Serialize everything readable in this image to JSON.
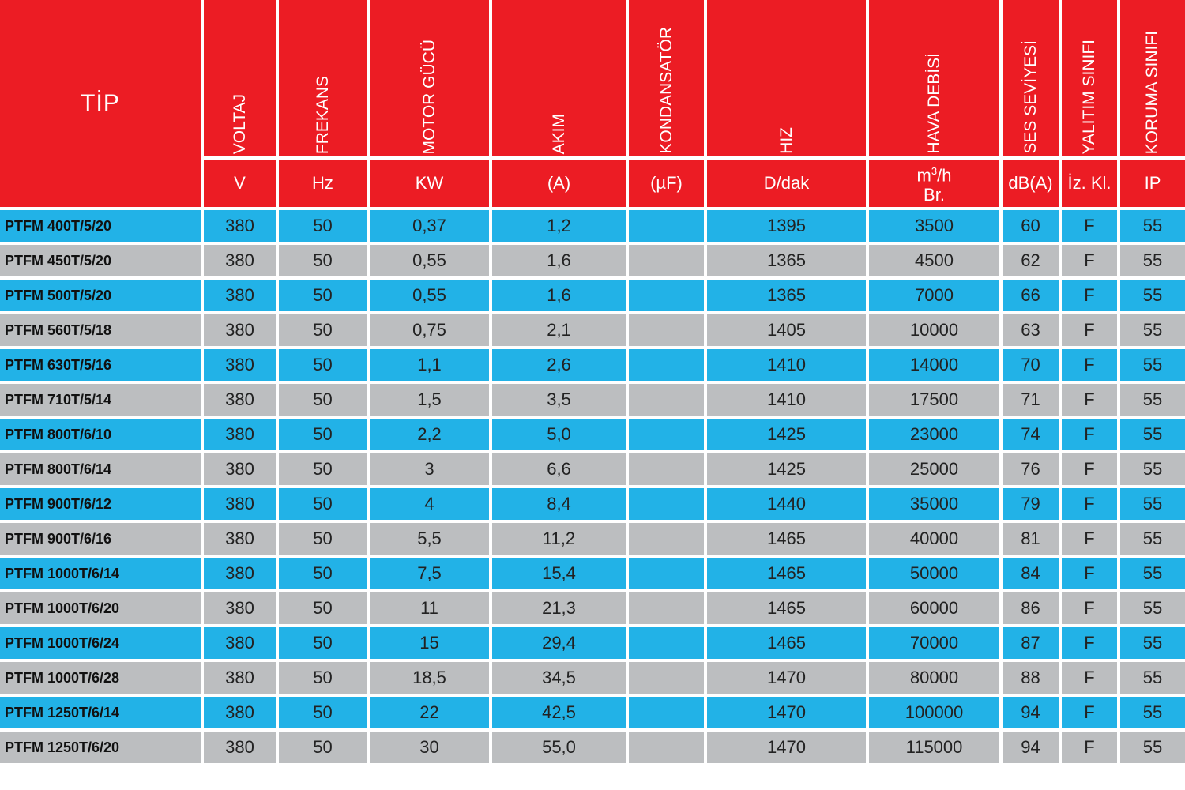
{
  "colors": {
    "header_bg": "#ec1c24",
    "row_blue": "#22b2e7",
    "row_grey": "#bcbec0"
  },
  "headers": [
    {
      "label": "TİP",
      "unit": ""
    },
    {
      "label": "VOLTAJ",
      "unit": "V"
    },
    {
      "label": "FREKANS",
      "unit": "Hz"
    },
    {
      "label": "MOTOR GÜCÜ",
      "unit": "KW"
    },
    {
      "label": "AKIM",
      "unit": "(A)"
    },
    {
      "label": "KONDANSATÖR",
      "unit": "(µF)"
    },
    {
      "label": "HIZ",
      "unit": "D/dak"
    },
    {
      "label": "HAVA DEBİSİ",
      "unit_line1": "m",
      "unit_sup": "3",
      "unit_line1b": "/h",
      "unit_line2": "Br."
    },
    {
      "label": "SES SEVİYESİ",
      "unit": "dB(A)"
    },
    {
      "label": "YALITIM SINIFI",
      "unit": "İz. Kl."
    },
    {
      "label": "KORUMA SINIFI",
      "unit": "IP"
    }
  ],
  "rows": [
    [
      "PTFM 400T/5/20",
      "380",
      "50",
      "0,37",
      "1,2",
      "",
      "1395",
      "3500",
      "60",
      "F",
      "55"
    ],
    [
      "PTFM 450T/5/20",
      "380",
      "50",
      "0,55",
      "1,6",
      "",
      "1365",
      "4500",
      "62",
      "F",
      "55"
    ],
    [
      "PTFM 500T/5/20",
      "380",
      "50",
      "0,55",
      "1,6",
      "",
      "1365",
      "7000",
      "66",
      "F",
      "55"
    ],
    [
      "PTFM 560T/5/18",
      "380",
      "50",
      "0,75",
      "2,1",
      "",
      "1405",
      "10000",
      "63",
      "F",
      "55"
    ],
    [
      "PTFM 630T/5/16",
      "380",
      "50",
      "1,1",
      "2,6",
      "",
      "1410",
      "14000",
      "70",
      "F",
      "55"
    ],
    [
      "PTFM 710T/5/14",
      "380",
      "50",
      "1,5",
      "3,5",
      "",
      "1410",
      "17500",
      "71",
      "F",
      "55"
    ],
    [
      "PTFM 800T/6/10",
      "380",
      "50",
      "2,2",
      "5,0",
      "",
      "1425",
      "23000",
      "74",
      "F",
      "55"
    ],
    [
      "PTFM 800T/6/14",
      "380",
      "50",
      "3",
      "6,6",
      "",
      "1425",
      "25000",
      "76",
      "F",
      "55"
    ],
    [
      "PTFM 900T/6/12",
      "380",
      "50",
      "4",
      "8,4",
      "",
      "1440",
      "35000",
      "79",
      "F",
      "55"
    ],
    [
      "PTFM 900T/6/16",
      "380",
      "50",
      "5,5",
      "11,2",
      "",
      "1465",
      "40000",
      "81",
      "F",
      "55"
    ],
    [
      "PTFM 1000T/6/14",
      "380",
      "50",
      "7,5",
      "15,4",
      "",
      "1465",
      "50000",
      "84",
      "F",
      "55"
    ],
    [
      "PTFM 1000T/6/20",
      "380",
      "50",
      "11",
      "21,3",
      "",
      "1465",
      "60000",
      "86",
      "F",
      "55"
    ],
    [
      "PTFM 1000T/6/24",
      "380",
      "50",
      "15",
      "29,4",
      "",
      "1465",
      "70000",
      "87",
      "F",
      "55"
    ],
    [
      "PTFM 1000T/6/28",
      "380",
      "50",
      "18,5",
      "34,5",
      "",
      "1470",
      "80000",
      "88",
      "F",
      "55"
    ],
    [
      "PTFM 1250T/6/14",
      "380",
      "50",
      "22",
      "42,5",
      "",
      "1470",
      "100000",
      "94",
      "F",
      "55"
    ],
    [
      "PTFM 1250T/6/20",
      "380",
      "50",
      "30",
      "55,0",
      "",
      "1470",
      "115000",
      "94",
      "F",
      "55"
    ]
  ]
}
